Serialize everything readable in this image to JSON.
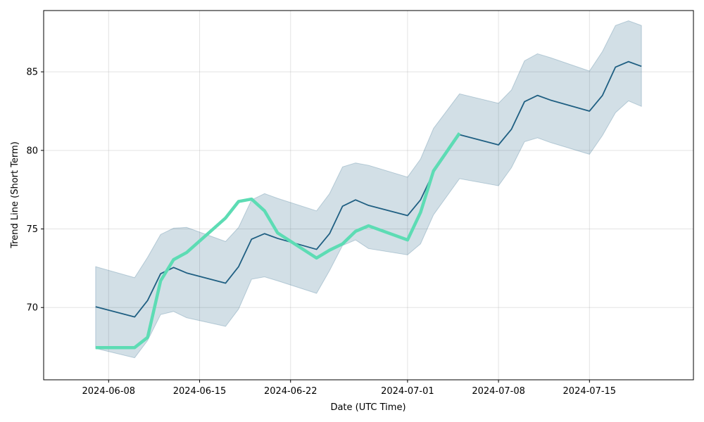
{
  "chart_data": {
    "type": "line",
    "xlabel": "Date (UTC Time)",
    "ylabel": "Trend Line (Short Term)",
    "x_ticks": [
      "2024-06-08",
      "2024-06-15",
      "2024-06-22",
      "2024-07-01",
      "2024-07-08",
      "2024-07-15"
    ],
    "y_ticks": [
      70,
      75,
      80,
      85
    ],
    "xlim": [
      "2024-06-03",
      "2024-07-23"
    ],
    "ylim": [
      65.4,
      88.9
    ],
    "grid": true,
    "series": [
      {
        "role": "trend",
        "color": "#1f5f82",
        "points": [
          [
            "2024-06-07",
            70.05
          ],
          [
            "2024-06-10",
            69.4
          ],
          [
            "2024-06-11",
            70.45
          ],
          [
            "2024-06-12",
            72.15
          ],
          [
            "2024-06-13",
            72.55
          ],
          [
            "2024-06-14",
            72.2
          ],
          [
            "2024-06-17",
            71.55
          ],
          [
            "2024-06-18",
            72.6
          ],
          [
            "2024-06-19",
            74.35
          ],
          [
            "2024-06-20",
            74.7
          ],
          [
            "2024-06-21",
            74.4
          ],
          [
            "2024-06-24",
            73.7
          ],
          [
            "2024-06-25",
            74.7
          ],
          [
            "2024-06-26",
            76.45
          ],
          [
            "2024-06-27",
            76.85
          ],
          [
            "2024-06-28",
            76.5
          ],
          [
            "2024-07-01",
            75.85
          ],
          [
            "2024-07-02",
            76.85
          ],
          [
            "2024-07-03",
            78.6
          ],
          [
            "2024-07-05",
            81.0
          ],
          [
            "2024-07-08",
            80.35
          ],
          [
            "2024-07-09",
            81.35
          ],
          [
            "2024-07-10",
            83.1
          ],
          [
            "2024-07-11",
            83.5
          ],
          [
            "2024-07-12",
            83.2
          ],
          [
            "2024-07-15",
            82.5
          ],
          [
            "2024-07-16",
            83.5
          ],
          [
            "2024-07-17",
            85.3
          ],
          [
            "2024-07-18",
            85.65
          ],
          [
            "2024-07-19",
            85.35
          ]
        ]
      },
      {
        "role": "price",
        "color": "#5ddcb4",
        "points": [
          [
            "2024-06-07",
            67.45
          ],
          [
            "2024-06-10",
            67.45
          ],
          [
            "2024-06-11",
            68.1
          ],
          [
            "2024-06-12",
            71.7
          ],
          [
            "2024-06-13",
            73.05
          ],
          [
            "2024-06-14",
            73.5
          ],
          [
            "2024-06-17",
            75.7
          ],
          [
            "2024-06-18",
            76.75
          ],
          [
            "2024-06-19",
            76.9
          ],
          [
            "2024-06-20",
            76.15
          ],
          [
            "2024-06-21",
            74.75
          ],
          [
            "2024-06-24",
            73.15
          ],
          [
            "2024-06-25",
            73.65
          ],
          [
            "2024-06-26",
            74.05
          ],
          [
            "2024-06-27",
            74.85
          ],
          [
            "2024-06-28",
            75.2
          ],
          [
            "2024-07-01",
            74.3
          ],
          [
            "2024-07-02",
            76.05
          ],
          [
            "2024-07-03",
            78.7
          ],
          [
            "2024-07-05",
            81.1
          ]
        ]
      }
    ],
    "band": {
      "color": "#1f5f82",
      "opacity": 0.2,
      "points": [
        [
          "2024-06-07",
          72.6,
          67.4
        ],
        [
          "2024-06-10",
          71.9,
          66.8
        ],
        [
          "2024-06-11",
          73.2,
          67.9
        ],
        [
          "2024-06-12",
          74.65,
          69.55
        ],
        [
          "2024-06-13",
          75.05,
          69.75
        ],
        [
          "2024-06-14",
          75.1,
          69.35
        ],
        [
          "2024-06-17",
          74.2,
          68.8
        ],
        [
          "2024-06-18",
          75.1,
          69.9
        ],
        [
          "2024-06-19",
          76.85,
          71.8
        ],
        [
          "2024-06-20",
          77.25,
          71.95
        ],
        [
          "2024-06-21",
          76.95,
          71.7
        ],
        [
          "2024-06-24",
          76.15,
          70.9
        ],
        [
          "2024-06-25",
          77.25,
          72.35
        ],
        [
          "2024-06-26",
          78.95,
          73.95
        ],
        [
          "2024-06-27",
          79.2,
          74.3
        ],
        [
          "2024-06-28",
          79.05,
          73.75
        ],
        [
          "2024-07-01",
          78.3,
          73.35
        ],
        [
          "2024-07-02",
          79.45,
          74.05
        ],
        [
          "2024-07-03",
          81.4,
          75.9
        ],
        [
          "2024-07-05",
          83.6,
          78.2
        ],
        [
          "2024-07-08",
          83.0,
          77.75
        ],
        [
          "2024-07-09",
          83.85,
          78.9
        ],
        [
          "2024-07-10",
          85.7,
          80.55
        ],
        [
          "2024-07-11",
          86.15,
          80.8
        ],
        [
          "2024-07-12",
          85.9,
          80.5
        ],
        [
          "2024-07-15",
          85.05,
          79.75
        ],
        [
          "2024-07-16",
          86.3,
          80.95
        ],
        [
          "2024-07-17",
          87.95,
          82.4
        ],
        [
          "2024-07-18",
          88.25,
          83.15
        ],
        [
          "2024-07-19",
          87.95,
          82.8
        ]
      ]
    }
  }
}
